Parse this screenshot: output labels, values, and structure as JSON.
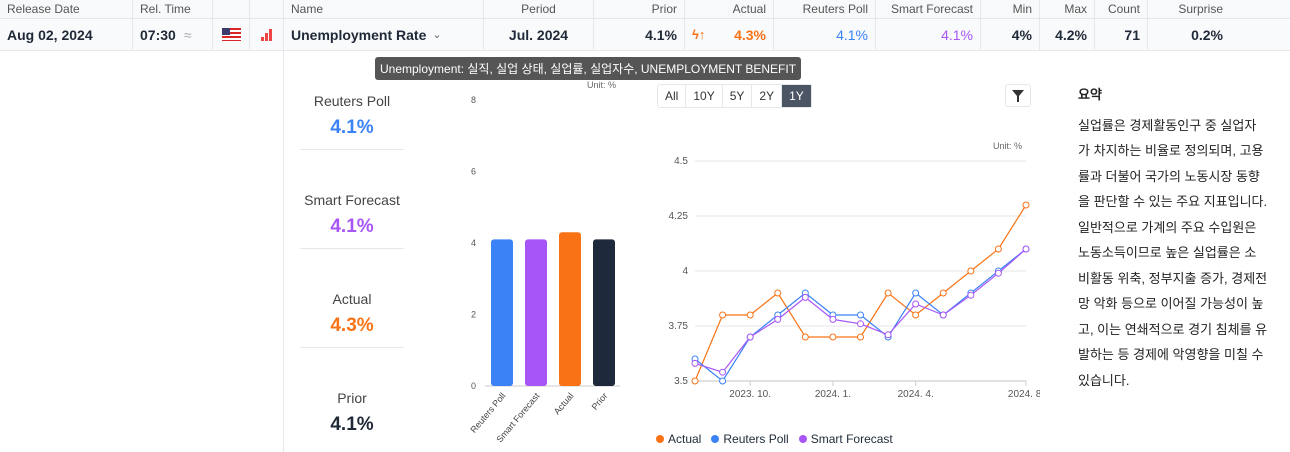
{
  "columns": [
    "Release Date",
    "Rel. Time",
    "",
    "",
    "Name",
    "Period",
    "Prior",
    "",
    "Actual",
    "Reuters Poll",
    "Smart Forecast",
    "Min",
    "Max",
    "Count",
    "Surprise"
  ],
  "row": {
    "date": "Aug 02, 2024",
    "time": "07:30",
    "approx": "≈",
    "country_icon": "us-flag-icon",
    "importance_icon": "bar-chart-icon",
    "name": "Unemployment Rate",
    "period": "Jul. 2024",
    "prior": "4.1%",
    "actual": "4.3%",
    "reuters": "4.1%",
    "smart": "4.1%",
    "min": "4%",
    "max": "4.2%",
    "count": "71",
    "surprise": "0.2%"
  },
  "tooltip": "Unemployment: 실직, 실업 상태, 실업률, 실업자수, UNEMPLOYMENT BENEFIT",
  "stats": [
    {
      "label": "Reuters Poll",
      "value": "4.1%",
      "color": "#3b82f6"
    },
    {
      "label": "Smart Forecast",
      "value": "4.1%",
      "color": "#a855f7"
    },
    {
      "label": "Actual",
      "value": "4.3%",
      "color": "#f97316"
    },
    {
      "label": "Prior",
      "value": "4.1%",
      "color": "#1f2937"
    }
  ],
  "ranges": [
    "All",
    "10Y",
    "5Y",
    "2Y",
    "1Y"
  ],
  "summary": {
    "title": "요약",
    "text": "실업률은 경제활동인구 중 실업자가 차지하는 비율로 정의되며, 고용률과 더불어 국가의 노동시장 동향을 판단할 수 있는 주요 지표입니다. 일반적으로 가계의 주요 수입원은 노동소득이므로 높은 실업률은 소비활동 위축, 정부지출 증가, 경제전망 악화 등으로 이어질 가능성이 높고, 이는 연쇄적으로 경기 침체를 유발하는 등 경제에 악영향을 미칠 수 있습니다."
  },
  "chart_data": [
    {
      "type": "bar",
      "unit": "Unit: %",
      "categories": [
        "Reuters Poll",
        "Smart Forecast",
        "Actual",
        "Prior"
      ],
      "values": [
        4.1,
        4.1,
        4.3,
        4.1
      ],
      "colors": [
        "#3b82f6",
        "#a855f7",
        "#f97316",
        "#1e293b"
      ],
      "ylim": [
        0,
        8
      ],
      "yticks": [
        "0",
        "2",
        "4",
        "6",
        "8"
      ]
    },
    {
      "type": "line",
      "unit": "Unit: %",
      "ylim": [
        3.5,
        4.5
      ],
      "yticks": [
        "3.5",
        "3.75",
        "4",
        "4.25",
        "4.5"
      ],
      "xticks": [
        {
          "label": "2023. 10.",
          "i": 2
        },
        {
          "label": "2024. 1.",
          "i": 5
        },
        {
          "label": "2024. 4.",
          "i": 8
        },
        {
          "label": "2024. 8.",
          "i": 12
        }
      ],
      "series": [
        {
          "name": "Actual",
          "color": "#f97316",
          "values": [
            3.5,
            3.8,
            3.8,
            3.9,
            3.7,
            3.7,
            3.7,
            3.9,
            3.8,
            3.9,
            4.0,
            4.1,
            4.3
          ]
        },
        {
          "name": "Reuters Poll",
          "color": "#3b82f6",
          "values": [
            3.6,
            3.5,
            3.7,
            3.8,
            3.9,
            3.8,
            3.8,
            3.7,
            3.9,
            3.8,
            3.9,
            4.0,
            4.1
          ]
        },
        {
          "name": "Smart Forecast",
          "color": "#a855f7",
          "values": [
            3.58,
            3.54,
            3.7,
            3.78,
            3.88,
            3.78,
            3.76,
            3.71,
            3.85,
            3.8,
            3.89,
            3.99,
            4.1
          ]
        }
      ]
    }
  ]
}
